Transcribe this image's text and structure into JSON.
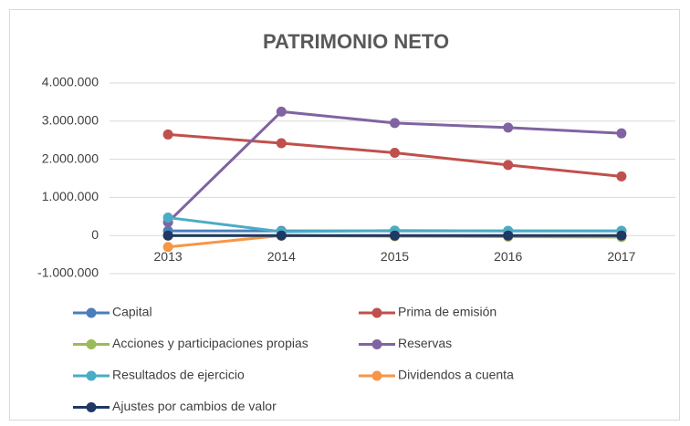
{
  "chart_data": {
    "type": "line",
    "title": "PATRIMONIO NETO",
    "categories": [
      "2013",
      "2014",
      "2015",
      "2016",
      "2017"
    ],
    "series": [
      {
        "name": "Capital",
        "color": "#4a7ebb",
        "values": [
          120000,
          120000,
          120000,
          120000,
          120000
        ]
      },
      {
        "name": "Prima de emisión",
        "color": "#c0504d",
        "values": [
          2650000,
          2420000,
          2170000,
          1850000,
          1550000
        ]
      },
      {
        "name": "Acciones y participaciones propias",
        "color": "#9bbb59",
        "values": [
          0,
          0,
          -20000,
          -30000,
          -40000
        ]
      },
      {
        "name": "Reservas",
        "color": "#8064a2",
        "values": [
          350000,
          3250000,
          2950000,
          2830000,
          2680000
        ]
      },
      {
        "name": "Resultados de ejercicio",
        "color": "#4bacc6",
        "values": [
          470000,
          100000,
          130000,
          120000,
          120000
        ]
      },
      {
        "name": "Dividendos a cuenta",
        "color": "#f79646",
        "values": [
          -300000,
          0,
          0,
          0,
          0
        ]
      },
      {
        "name": "Ajustes por cambios de valor",
        "color": "#1f3864",
        "values": [
          0,
          0,
          0,
          0,
          0
        ]
      }
    ],
    "ylim": [
      -1000000,
      4000000
    ],
    "yticks": [
      {
        "value": -1000000,
        "label": "-1.000.000"
      },
      0,
      {
        "value": 1000000,
        "label": "1.000.000"
      },
      {
        "value": 2000000,
        "label": "2.000.000"
      },
      {
        "value": 3000000,
        "label": "3.000.000"
      },
      {
        "value": 4000000,
        "label": "4.000.000"
      }
    ],
    "grid": true,
    "legend": "bottom"
  }
}
